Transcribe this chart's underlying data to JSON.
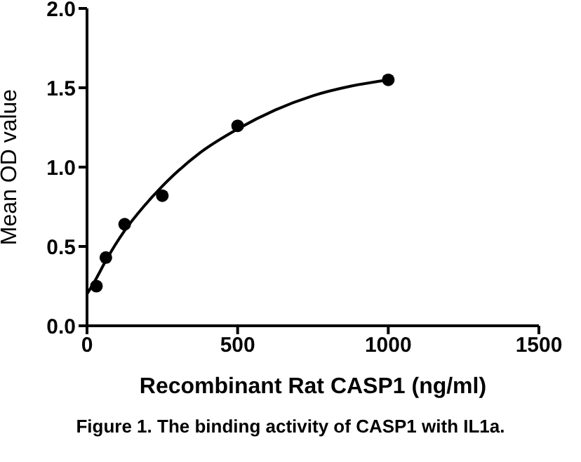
{
  "chart_data": {
    "type": "scatter",
    "xlabel": "Recombinant Rat CASP1 (ng/ml)",
    "ylabel": "Mean OD value",
    "annotations": [
      "Figure 1. The binding activity of CASP1 with IL1a."
    ],
    "x": [
      31.25,
      62.5,
      125,
      250,
      500,
      1000
    ],
    "series": [
      {
        "color": "#000000",
        "values": [
          0.25,
          0.43,
          0.64,
          0.82,
          1.26,
          1.55
        ],
        "marker": "circle"
      },
      {
        "type": "line",
        "color": "#000000",
        "x": [
          0,
          31.25,
          62.5,
          125,
          187.5,
          250,
          375,
          500,
          625,
          750,
          875,
          1000
        ],
        "values": [
          0.2,
          0.3,
          0.41,
          0.6,
          0.75,
          0.88,
          1.09,
          1.24,
          1.36,
          1.45,
          1.51,
          1.55
        ],
        "marker": "none"
      }
    ],
    "xlim": [
      0,
      1500
    ],
    "xticks": [
      0,
      500,
      1000,
      1500
    ],
    "ylim": [
      0,
      2.0
    ],
    "yticks": [
      {
        "value": 0,
        "label": "0.0"
      },
      {
        "value": 0.5,
        "label": "0.5"
      },
      {
        "value": 1,
        "label": "1.0"
      },
      {
        "value": 1.5,
        "label": "1.5"
      },
      {
        "value": 2,
        "label": "2.0"
      }
    ],
    "grid": false
  }
}
